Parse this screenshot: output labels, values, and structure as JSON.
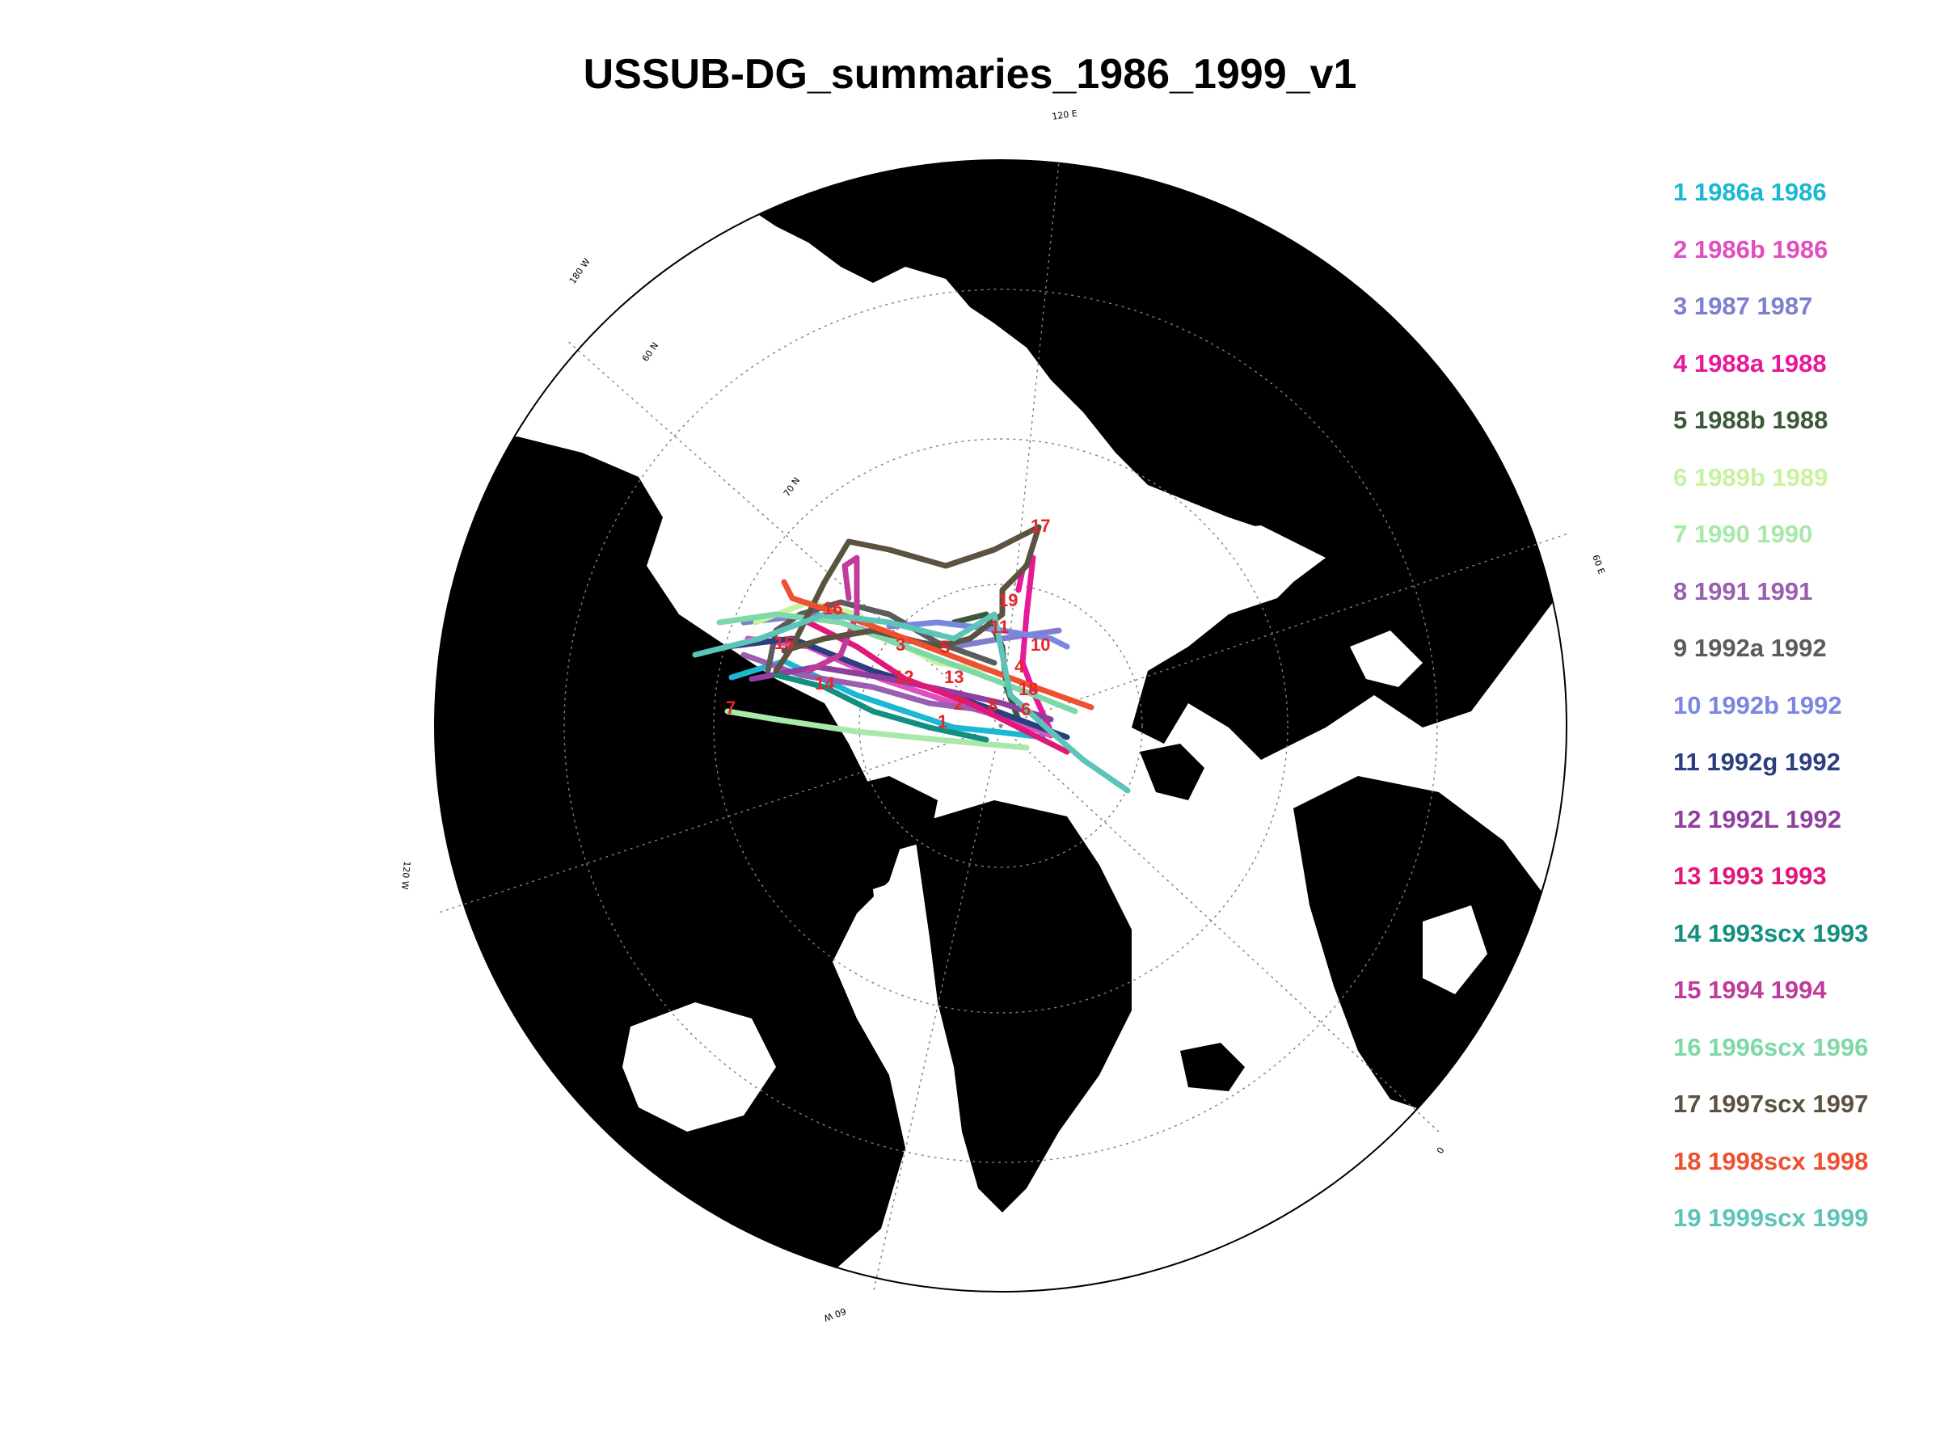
{
  "title": "USSUB-DG_summaries_1986_1999_v1",
  "projection": "north polar stereographic",
  "colors": {
    "land": "#000000",
    "ocean": "#ffffff",
    "graticule": "#808080",
    "track_label": "#e8262a"
  },
  "graticule_labels": [
    "120 E",
    "180 W",
    "60 N",
    "70 N",
    "60 E",
    "120 W",
    "0",
    "60 W"
  ],
  "legend": [
    {
      "text": "1 1986a 1986",
      "color": "#1ab8d2"
    },
    {
      "text": "2 1986b 1986",
      "color": "#e04fc0"
    },
    {
      "text": "3 1987 1987",
      "color": "#7f7fd0"
    },
    {
      "text": "4 1988a 1988",
      "color": "#e8189a"
    },
    {
      "text": "5 1988b 1988",
      "color": "#3b5a3b"
    },
    {
      "text": "6 1989b 1989",
      "color": "#c7f2a0"
    },
    {
      "text": "7 1990 1990",
      "color": "#a8e8a8"
    },
    {
      "text": "8 1991 1991",
      "color": "#9b5fb0"
    },
    {
      "text": "9 1992a 1992",
      "color": "#5c5c5c"
    },
    {
      "text": "10 1992b 1992",
      "color": "#7a86e0"
    },
    {
      "text": "11 1992g 1992",
      "color": "#2b3f7e"
    },
    {
      "text": "12 1992L 1992",
      "color": "#8e3fa0"
    },
    {
      "text": "13 1993 1993",
      "color": "#e0187a"
    },
    {
      "text": "14 1993scx 1993",
      "color": "#138f80"
    },
    {
      "text": "15 1994 1994",
      "color": "#c03c9c"
    },
    {
      "text": "16 1996scx 1996",
      "color": "#7ed8a8"
    },
    {
      "text": "17 1997scx 1997",
      "color": "#5b5240"
    },
    {
      "text": "18 1998scx 1998",
      "color": "#ee5030"
    },
    {
      "text": "19 1999scx 1999",
      "color": "#5cc4b8"
    }
  ],
  "track_labels": [
    "17",
    "19",
    "11",
    "16",
    "10",
    "3",
    "5",
    "4",
    "15",
    "18",
    "14",
    "12",
    "13",
    "2",
    "8",
    "7",
    "1",
    "6"
  ]
}
